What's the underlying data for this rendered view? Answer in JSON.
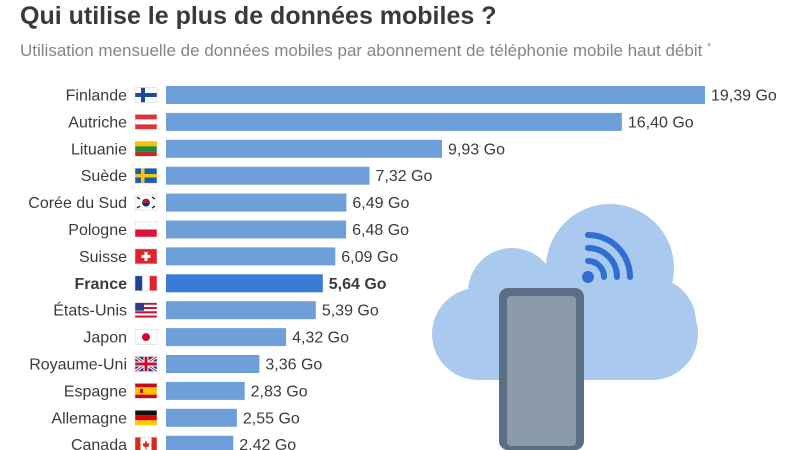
{
  "title": "Qui utilise le plus de données mobiles ?",
  "subtitle": "Utilisation mensuelle de données mobiles par abonnement de téléphonie mobile haut débit",
  "subtitle_mark": "*",
  "colors": {
    "bar": "#6f9fd8",
    "bar_highlight": "#3a7bd5",
    "cloud": "#a9c9ee",
    "phone_body": "#5a6f84",
    "phone_screen": "#8a9aa8",
    "wifi": "#2f6fd1"
  },
  "chart_data": {
    "type": "bar",
    "orientation": "horizontal",
    "categories": [
      "Finlande",
      "Autriche",
      "Lituanie",
      "Suède",
      "Corée du Sud",
      "Pologne",
      "Suisse",
      "France",
      "États-Unis",
      "Japon",
      "Royaume-Uni",
      "Espagne",
      "Allemagne",
      "Canada"
    ],
    "values": [
      19.39,
      16.4,
      9.93,
      7.32,
      6.49,
      6.48,
      6.09,
      5.64,
      5.39,
      4.32,
      3.36,
      2.83,
      2.55,
      2.42
    ],
    "value_labels": [
      "19,39 Go",
      "16,40 Go",
      "9,93 Go",
      "7,32 Go",
      "6,49 Go",
      "6,48 Go",
      "6,09 Go",
      "5,64 Go",
      "5,39 Go",
      "4,32 Go",
      "3,36 Go",
      "2,83 Go",
      "2,55 Go",
      "2,42 Go"
    ],
    "unit": "Go",
    "highlight": "France",
    "flags": [
      "flag-finland-icon",
      "flag-austria-icon",
      "flag-lithuania-icon",
      "flag-sweden-icon",
      "flag-south-korea-icon",
      "flag-poland-icon",
      "flag-switzerland-icon",
      "flag-france-icon",
      "flag-usa-icon",
      "flag-japan-icon",
      "flag-uk-icon",
      "flag-spain-icon",
      "flag-germany-icon",
      "flag-canada-icon"
    ],
    "xlim": [
      0,
      19.39
    ],
    "grid": false,
    "legend": "none"
  },
  "illustration": [
    "cloud-icon",
    "smartphone-icon",
    "wifi-icon"
  ]
}
